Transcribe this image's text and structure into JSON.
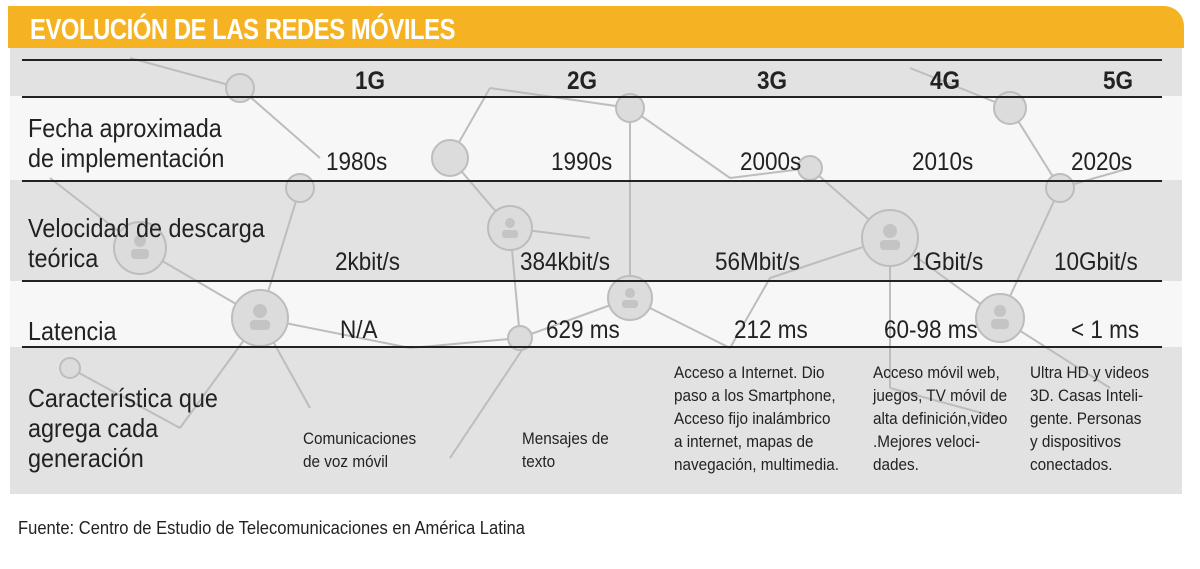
{
  "title": "EVOLUCIÓN DE LAS REDES MÓVILES",
  "columns": [
    "1G",
    "2G",
    "3G",
    "4G",
    "5G"
  ],
  "rows": {
    "fecha": {
      "label_lines": [
        "Fecha aproximada",
        "de implementación"
      ],
      "values": [
        "1980s",
        "1990s",
        "2000s",
        "2010s",
        "2020s"
      ]
    },
    "velocidad": {
      "label_lines": [
        "Velocidad de descarga",
        "teórica"
      ],
      "values": [
        "2kbit/s",
        "384kbit/s",
        "56Mbit/s",
        "1Gbit/s",
        "10Gbit/s"
      ]
    },
    "latencia": {
      "label_lines": [
        "Latencia"
      ],
      "values": [
        "N/A",
        "629 ms",
        "212 ms",
        "60-98 ms",
        "< 1 ms"
      ]
    },
    "caracteristica": {
      "label_lines": [
        "Característica que",
        "agrega cada",
        "generación"
      ],
      "values": [
        [
          "Comunicaciones",
          "de voz móvil"
        ],
        [
          "Mensajes de",
          "texto"
        ],
        [
          "Acceso a Internet. Dio",
          "paso a los Smartphone,",
          "Acceso fijo inalámbrico",
          "a internet, mapas de",
          "navegación, multimedia."
        ],
        [
          "Acceso móvil web,",
          "juegos, TV móvil de",
          "alta definición,video",
          ".Mejores veloci-",
          "dades."
        ],
        [
          "Ultra HD y videos",
          "3D. Casas Inteli-",
          "gente. Personas",
          "y dispositivos",
          "conectados."
        ]
      ]
    }
  },
  "source": "Fuente: Centro de Estudio de Telecomunicaciones en América Latina",
  "colors": {
    "accent": "#f5b324",
    "background": "#e2e2e2",
    "band": "#f7f7f7",
    "text": "#222222"
  },
  "icons": [
    "person-node-icon"
  ]
}
